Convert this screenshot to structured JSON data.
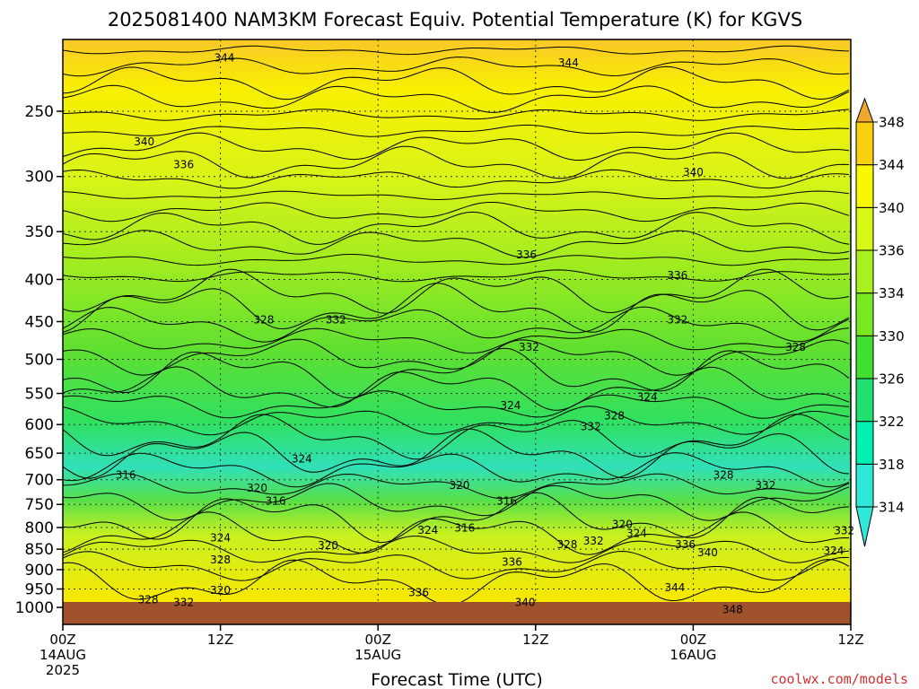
{
  "chart_data": {
    "type": "heatmap",
    "title": "2025081400 NAM3KM Forecast Equiv. Potential Temperature (K) for KGVS",
    "xlabel": "Forecast Time (UTC)",
    "ylabel": "",
    "x_ticks": [
      {
        "label": "00Z",
        "sub": [
          "14AUG",
          "2025"
        ],
        "hour": 0
      },
      {
        "label": "12Z",
        "sub": [],
        "hour": 12
      },
      {
        "label": "00Z",
        "sub": [
          "15AUG"
        ],
        "hour": 24
      },
      {
        "label": "12Z",
        "sub": [],
        "hour": 36
      },
      {
        "label": "00Z",
        "sub": [
          "16AUG"
        ],
        "hour": 48
      },
      {
        "label": "12Z",
        "sub": [],
        "hour": 60
      }
    ],
    "xlim": [
      0,
      60
    ],
    "y_ticks": [
      250,
      300,
      350,
      400,
      450,
      500,
      550,
      600,
      650,
      700,
      750,
      800,
      850,
      900,
      950,
      1000
    ],
    "ylim": [
      200,
      1050
    ],
    "y_scale": "log",
    "y_reversed": true,
    "grid": true,
    "colorbar": {
      "position": "right",
      "levels": [
        314,
        318,
        322,
        326,
        330,
        334,
        336,
        340,
        344,
        348
      ],
      "colors": [
        "#30e8d8",
        "#00f0b0",
        "#20e070",
        "#40e030",
        "#78e820",
        "#a8f020",
        "#d8f818",
        "#f8f800",
        "#f8d010",
        "#f0a830"
      ]
    },
    "ground_color": "#a0522d",
    "contour_labels": [
      {
        "text": "344",
        "hour": 12.3,
        "p": 215
      },
      {
        "text": "344",
        "hour": 38.5,
        "p": 218
      },
      {
        "text": "340",
        "hour": 6.2,
        "p": 272
      },
      {
        "text": "336",
        "hour": 9.2,
        "p": 290
      },
      {
        "text": "340",
        "hour": 48.0,
        "p": 296
      },
      {
        "text": "336",
        "hour": 35.3,
        "p": 373
      },
      {
        "text": "336",
        "hour": 46.8,
        "p": 395
      },
      {
        "text": "328",
        "hour": 15.3,
        "p": 447
      },
      {
        "text": "332",
        "hour": 20.8,
        "p": 447
      },
      {
        "text": "332",
        "hour": 46.8,
        "p": 447
      },
      {
        "text": "332",
        "hour": 35.5,
        "p": 483
      },
      {
        "text": "328",
        "hour": 55.8,
        "p": 483
      },
      {
        "text": "324",
        "hour": 34.1,
        "p": 568
      },
      {
        "text": "324",
        "hour": 44.5,
        "p": 555
      },
      {
        "text": "328",
        "hour": 42.0,
        "p": 585
      },
      {
        "text": "332",
        "hour": 40.2,
        "p": 603
      },
      {
        "text": "324",
        "hour": 18.2,
        "p": 660
      },
      {
        "text": "316",
        "hour": 4.8,
        "p": 690
      },
      {
        "text": "328",
        "hour": 50.3,
        "p": 690
      },
      {
        "text": "332",
        "hour": 53.5,
        "p": 710
      },
      {
        "text": "320",
        "hour": 14.8,
        "p": 716
      },
      {
        "text": "320",
        "hour": 30.2,
        "p": 710
      },
      {
        "text": "316",
        "hour": 16.2,
        "p": 742
      },
      {
        "text": "316",
        "hour": 33.8,
        "p": 742
      },
      {
        "text": "320",
        "hour": 42.6,
        "p": 792
      },
      {
        "text": "324",
        "hour": 27.8,
        "p": 805
      },
      {
        "text": "316",
        "hour": 30.6,
        "p": 800
      },
      {
        "text": "324",
        "hour": 43.7,
        "p": 812
      },
      {
        "text": "324",
        "hour": 12.0,
        "p": 822
      },
      {
        "text": "332",
        "hour": 59.5,
        "p": 806
      },
      {
        "text": "328",
        "hour": 38.4,
        "p": 838
      },
      {
        "text": "332",
        "hour": 40.4,
        "p": 830
      },
      {
        "text": "336",
        "hour": 47.4,
        "p": 838
      },
      {
        "text": "320",
        "hour": 20.2,
        "p": 840
      },
      {
        "text": "340",
        "hour": 49.1,
        "p": 857
      },
      {
        "text": "324",
        "hour": 58.7,
        "p": 853
      },
      {
        "text": "328",
        "hour": 12.0,
        "p": 874
      },
      {
        "text": "336",
        "hour": 34.2,
        "p": 880
      },
      {
        "text": "320",
        "hour": 12.0,
        "p": 952
      },
      {
        "text": "336",
        "hour": 27.1,
        "p": 958
      },
      {
        "text": "344",
        "hour": 46.6,
        "p": 945
      },
      {
        "text": "328",
        "hour": 6.5,
        "p": 978
      },
      {
        "text": "332",
        "hour": 9.2,
        "p": 985
      },
      {
        "text": "340",
        "hour": 35.2,
        "p": 985
      },
      {
        "text": "348",
        "hour": 51.0,
        "p": 1005
      }
    ]
  },
  "footer": {
    "credit": "coolwx.com/models"
  }
}
